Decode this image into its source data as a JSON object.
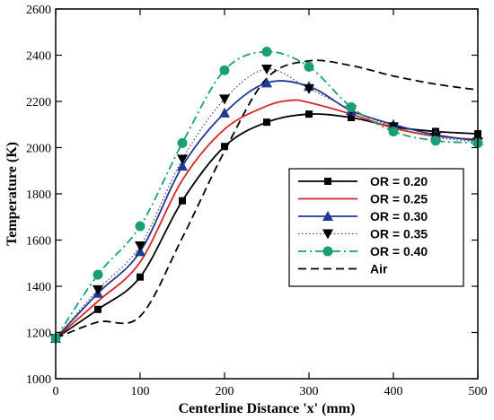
{
  "chart_data": {
    "type": "line",
    "title": "",
    "xlabel": "Centerline Distance 'x' (mm)",
    "ylabel": "Temperature (K)",
    "xlim": [
      0,
      500
    ],
    "ylim": [
      1000,
      2600
    ],
    "xticks": [
      0,
      100,
      200,
      300,
      400,
      500
    ],
    "yticks": [
      1000,
      1200,
      1400,
      1600,
      1800,
      2000,
      2200,
      2400,
      2600
    ],
    "grid": false,
    "legend_position": "center-right",
    "series": [
      {
        "name": "OR = 0.20",
        "color": "#000000",
        "dash": "solid",
        "marker": "square",
        "x": [
          0,
          50,
          100,
          150,
          200,
          250,
          300,
          350,
          400,
          450,
          500
        ],
        "y": [
          1175,
          1300,
          1440,
          1770,
          2005,
          2110,
          2145,
          2130,
          2090,
          2070,
          2060
        ]
      },
      {
        "name": "OR = 0.25",
        "color": "#d62728",
        "dash": "solid",
        "marker": "none",
        "x": [
          0,
          50,
          100,
          150,
          200,
          250,
          280,
          300,
          350,
          400,
          450,
          500
        ],
        "y": [
          1175,
          1335,
          1505,
          1860,
          2080,
          2180,
          2205,
          2195,
          2145,
          2085,
          2050,
          2035
        ]
      },
      {
        "name": "OR = 0.30",
        "color": "#1f3a93",
        "dash": "solid",
        "marker": "triangle-up",
        "x": [
          0,
          50,
          100,
          150,
          200,
          250,
          300,
          350,
          400,
          450,
          500
        ],
        "y": [
          1175,
          1370,
          1550,
          1920,
          2150,
          2280,
          2265,
          2160,
          2100,
          2055,
          2030
        ]
      },
      {
        "name": "OR = 0.35",
        "color": "#555555",
        "dash": "dotted",
        "marker": "triangle-down",
        "x": [
          0,
          50,
          100,
          150,
          200,
          250,
          300,
          350,
          400,
          450,
          500
        ],
        "y": [
          1175,
          1385,
          1575,
          1950,
          2210,
          2340,
          2255,
          2165,
          2090,
          2045,
          2025
        ]
      },
      {
        "name": "OR = 0.40",
        "color": "#1a9e77",
        "dash": "dashdot",
        "marker": "circle",
        "x": [
          0,
          50,
          100,
          150,
          200,
          250,
          300,
          350,
          400,
          450,
          500
        ],
        "y": [
          1175,
          1450,
          1660,
          2020,
          2335,
          2415,
          2350,
          2175,
          2070,
          2030,
          2020
        ]
      },
      {
        "name": "Air",
        "color": "#000000",
        "dash": "dashed",
        "marker": "none",
        "x": [
          0,
          50,
          100,
          150,
          200,
          250,
          300,
          350,
          400,
          450,
          500
        ],
        "y": [
          1175,
          1245,
          1270,
          1610,
          1985,
          2300,
          2375,
          2355,
          2310,
          2275,
          2250
        ]
      }
    ]
  }
}
